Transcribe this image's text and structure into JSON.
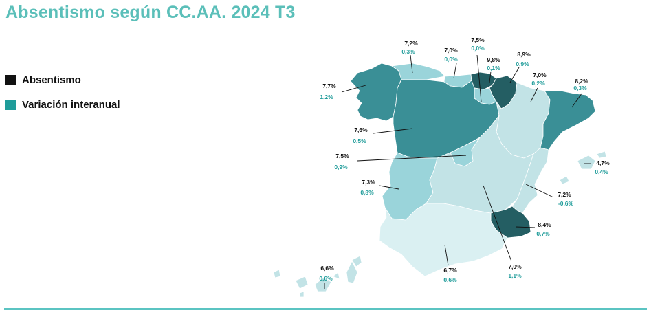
{
  "title": "Absentismo según CC.AA. 2024 T3",
  "legend": [
    {
      "label": "Absentismo",
      "color": "#111111"
    },
    {
      "label": "Variación interanual",
      "color": "#1f9c9a"
    }
  ],
  "colors": {
    "title": "#5bbfb9",
    "value_text": "#111111",
    "variation_text": "#1f9c9a",
    "bottom_rule": "#5bc4c2",
    "class_darkest": "#245e63",
    "class_dark": "#3a8f96",
    "class_mid": "#9ad4da",
    "class_light": "#c2e3e6",
    "class_lightest": "#daf0f2"
  },
  "regions": [
    {
      "name": "Galicia",
      "absentismo": "7,7%",
      "variacion": "1,2%"
    },
    {
      "name": "Asturias",
      "absentismo": "7,2%",
      "variacion": "0,3%"
    },
    {
      "name": "Cantabria",
      "absentismo": "7,0%",
      "variacion": "0,0%"
    },
    {
      "name": "País Vasco",
      "absentismo": "7,5%",
      "variacion": "0,0%"
    },
    {
      "name": "Navarra",
      "absentismo": "8,9%",
      "variacion": "0,9%"
    },
    {
      "name": "La Rioja",
      "absentismo": "9,8%",
      "variacion": "0,1%"
    },
    {
      "name": "Aragón",
      "absentismo": "7,0%",
      "variacion": "0,2%"
    },
    {
      "name": "Cataluña",
      "absentismo": "8,2%",
      "variacion": "0,3%"
    },
    {
      "name": "Castilla y León",
      "absentismo": "7,6%",
      "variacion": "0,5%"
    },
    {
      "name": "Madrid",
      "absentismo": "7,5%",
      "variacion": "0,9%"
    },
    {
      "name": "Extremadura",
      "absentismo": "7,3%",
      "variacion": "0,8%"
    },
    {
      "name": "Illes Balears",
      "absentismo": "4,7%",
      "variacion": "0,4%"
    },
    {
      "name": "Comunitat Valenciana",
      "absentismo": "7,2%",
      "variacion": "-0,6%"
    },
    {
      "name": "Región de Murcia",
      "absentismo": "8,4%",
      "variacion": "0,7%"
    },
    {
      "name": "Castilla-La Mancha",
      "absentismo": "7,0%",
      "variacion": "1,1%"
    },
    {
      "name": "Andalucía",
      "absentismo": "6,7%",
      "variacion": "0,6%"
    },
    {
      "name": "Canarias",
      "absentismo": "6,6%",
      "variacion": "0,6%"
    }
  ]
}
